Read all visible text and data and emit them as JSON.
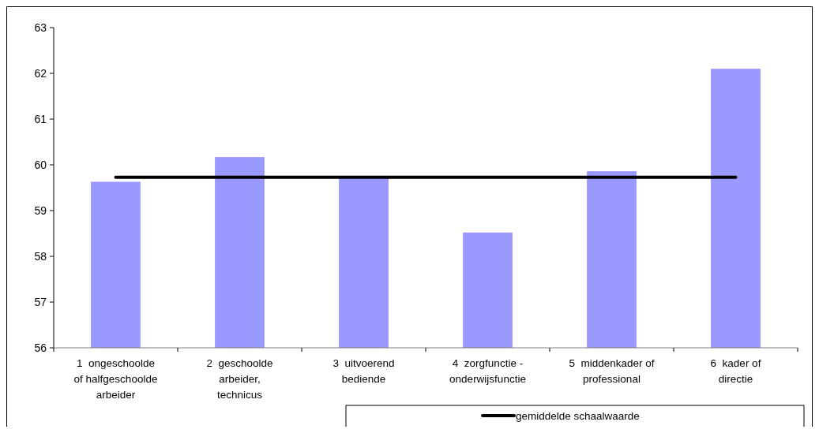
{
  "chart_data": {
    "type": "bar",
    "categories": [
      "1  ongeschoolde of halfgeschoolde arbeider",
      "2  geschoolde arbeider, technicus",
      "3  uitvoerend bediende",
      "4  zorgfunctie - onderwijsfunctie",
      "5  middenkader of professional",
      "6  kader of directie"
    ],
    "series": [
      {
        "color": "#9999ff",
        "values": [
          59.63,
          60.17,
          59.72,
          58.52,
          59.86,
          62.1
        ]
      },
      {
        "type": "line",
        "name": "gemiddelde schaalwaarde",
        "color": "#000000",
        "values": [
          59.73,
          59.73,
          59.73,
          59.73,
          59.73,
          59.73
        ]
      }
    ],
    "ylim": [
      56,
      63
    ],
    "yticks": [
      56,
      57,
      58,
      59,
      60,
      61,
      62,
      63
    ],
    "grid": false,
    "legend": "bottom",
    "marker": "none"
  }
}
